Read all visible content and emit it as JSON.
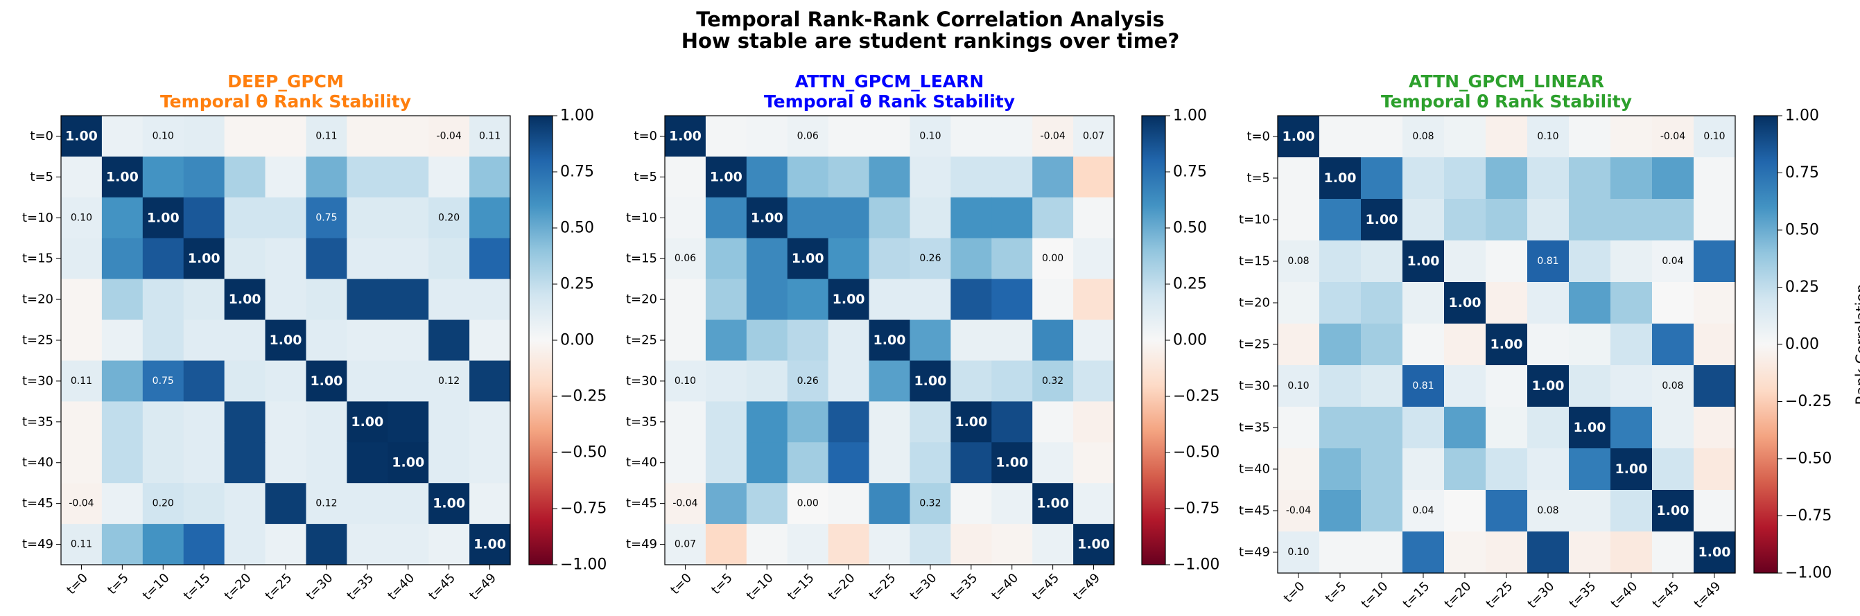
{
  "figure": {
    "title_line1": "Temporal Rank-Rank Correlation Analysis",
    "title_line2": "How stable are student rankings over time?"
  },
  "colors": {
    "DEEP_GPCM": "#ff7f0e",
    "ATTN_GPCM_LEARN": "#0000ff",
    "ATTN_GPCM_LINEAR": "#2ca02c"
  },
  "chart_data": [
    {
      "type": "heatmap",
      "model": "DEEP_GPCM",
      "subtitle": "Temporal θ Rank Stability",
      "x_labels": [
        "t=0",
        "t=5",
        "t=10",
        "t=15",
        "t=20",
        "t=25",
        "t=30",
        "t=35",
        "t=40",
        "t=45",
        "t=49"
      ],
      "y_labels": [
        "t=0",
        "t=5",
        "t=10",
        "t=15",
        "t=20",
        "t=25",
        "t=30",
        "t=35",
        "t=40",
        "t=45",
        "t=49"
      ],
      "colorbar": {
        "min": -1.0,
        "max": 1.0,
        "ticks": [
          "1.00",
          "0.75",
          "0.50",
          "0.25",
          "0.00",
          "−0.25",
          "−0.50",
          "−0.75",
          "−1.00"
        ],
        "label": "",
        "cmap": "RdBu"
      },
      "annotated_cells": [
        [
          0,
          2
        ],
        [
          0,
          6
        ],
        [
          0,
          9
        ],
        [
          0,
          10
        ],
        [
          2,
          0
        ],
        [
          2,
          6
        ],
        [
          2,
          9
        ],
        [
          6,
          0
        ],
        [
          6,
          2
        ],
        [
          6,
          9
        ],
        [
          9,
          0
        ],
        [
          9,
          2
        ],
        [
          9,
          6
        ],
        [
          10,
          0
        ]
      ],
      "matrix": [
        [
          1.0,
          0.07,
          0.1,
          0.11,
          -0.02,
          -0.02,
          0.11,
          -0.03,
          -0.03,
          -0.04,
          0.11
        ],
        [
          0.07,
          1.0,
          0.6,
          0.65,
          0.32,
          0.07,
          0.48,
          0.25,
          0.25,
          0.07,
          0.4
        ],
        [
          0.1,
          0.6,
          1.0,
          0.85,
          0.2,
          0.2,
          0.75,
          0.15,
          0.15,
          0.2,
          0.6
        ],
        [
          0.11,
          0.65,
          0.85,
          1.0,
          0.15,
          0.12,
          0.86,
          0.12,
          0.12,
          0.17,
          0.8
        ],
        [
          -0.02,
          0.32,
          0.2,
          0.15,
          1.0,
          0.12,
          0.15,
          0.92,
          0.92,
          0.12,
          0.12
        ],
        [
          -0.02,
          0.07,
          0.2,
          0.12,
          0.12,
          1.0,
          0.12,
          0.1,
          0.1,
          0.95,
          0.07
        ],
        [
          0.11,
          0.48,
          0.75,
          0.86,
          0.15,
          0.12,
          1.0,
          0.12,
          0.12,
          0.12,
          0.95
        ],
        [
          -0.03,
          0.25,
          0.15,
          0.12,
          0.92,
          0.1,
          0.12,
          1.0,
          0.99,
          0.12,
          0.1
        ],
        [
          -0.03,
          0.25,
          0.15,
          0.12,
          0.92,
          0.1,
          0.12,
          0.99,
          1.0,
          0.12,
          0.1
        ],
        [
          -0.04,
          0.07,
          0.2,
          0.17,
          0.12,
          0.95,
          0.12,
          0.12,
          0.12,
          1.0,
          0.07
        ],
        [
          0.11,
          0.4,
          0.6,
          0.8,
          0.12,
          0.07,
          0.95,
          0.1,
          0.1,
          0.07,
          1.0
        ]
      ]
    },
    {
      "type": "heatmap",
      "model": "ATTN_GPCM_LEARN",
      "subtitle": "Temporal θ Rank Stability",
      "x_labels": [
        "t=0",
        "t=5",
        "t=10",
        "t=15",
        "t=20",
        "t=25",
        "t=30",
        "t=35",
        "t=40",
        "t=45",
        "t=49"
      ],
      "y_labels": [
        "t=0",
        "t=5",
        "t=10",
        "t=15",
        "t=20",
        "t=25",
        "t=30",
        "t=35",
        "t=40",
        "t=45",
        "t=49"
      ],
      "colorbar": {
        "min": -1.0,
        "max": 1.0,
        "ticks": [
          "1.00",
          "0.75",
          "0.50",
          "0.25",
          "0.00",
          "−0.25",
          "−0.50",
          "−0.75",
          "−1.00"
        ],
        "label": "",
        "cmap": "RdBu"
      },
      "annotated_cells": [
        [
          0,
          3
        ],
        [
          0,
          6
        ],
        [
          0,
          9
        ],
        [
          0,
          10
        ],
        [
          3,
          0
        ],
        [
          3,
          6
        ],
        [
          3,
          9
        ],
        [
          6,
          0
        ],
        [
          6,
          3
        ],
        [
          6,
          9
        ],
        [
          9,
          0
        ],
        [
          9,
          3
        ],
        [
          9,
          6
        ],
        [
          10,
          0
        ]
      ],
      "matrix": [
        [
          1.0,
          0.02,
          0.03,
          0.06,
          0.02,
          0.02,
          0.1,
          0.03,
          0.03,
          -0.04,
          0.07
        ],
        [
          0.02,
          1.0,
          0.65,
          0.4,
          0.35,
          0.55,
          0.12,
          0.2,
          0.2,
          0.5,
          -0.2
        ],
        [
          0.03,
          0.65,
          1.0,
          0.65,
          0.65,
          0.35,
          0.15,
          0.6,
          0.6,
          0.3,
          0.02
        ],
        [
          0.06,
          0.4,
          0.65,
          1.0,
          0.6,
          0.28,
          0.26,
          0.45,
          0.35,
          0.0,
          0.07
        ],
        [
          0.02,
          0.35,
          0.65,
          0.6,
          1.0,
          0.12,
          0.12,
          0.85,
          0.8,
          0.02,
          -0.15
        ],
        [
          0.02,
          0.55,
          0.35,
          0.28,
          0.12,
          1.0,
          0.55,
          0.08,
          0.08,
          0.65,
          0.07
        ],
        [
          0.1,
          0.12,
          0.15,
          0.26,
          0.12,
          0.55,
          1.0,
          0.22,
          0.25,
          0.32,
          0.2
        ],
        [
          0.03,
          0.2,
          0.6,
          0.45,
          0.85,
          0.08,
          0.22,
          1.0,
          0.9,
          0.02,
          -0.05
        ],
        [
          0.03,
          0.2,
          0.6,
          0.35,
          0.8,
          0.08,
          0.25,
          0.9,
          1.0,
          0.07,
          -0.03
        ],
        [
          -0.04,
          0.5,
          0.3,
          0.0,
          0.02,
          0.65,
          0.32,
          0.02,
          0.07,
          1.0,
          0.07
        ],
        [
          0.07,
          -0.2,
          0.02,
          0.07,
          -0.15,
          0.07,
          0.2,
          -0.05,
          -0.03,
          0.07,
          1.0
        ]
      ]
    },
    {
      "type": "heatmap",
      "model": "ATTN_GPCM_LINEAR",
      "subtitle": "Temporal θ Rank Stability",
      "x_labels": [
        "t=0",
        "t=5",
        "t=10",
        "t=15",
        "t=20",
        "t=25",
        "t=30",
        "t=35",
        "t=40",
        "t=45",
        "t=49"
      ],
      "y_labels": [
        "t=0",
        "t=5",
        "t=10",
        "t=15",
        "t=20",
        "t=25",
        "t=30",
        "t=35",
        "t=40",
        "t=45",
        "t=49"
      ],
      "colorbar": {
        "min": -1.0,
        "max": 1.0,
        "ticks": [
          "1.00",
          "0.75",
          "0.50",
          "0.25",
          "0.00",
          "−0.25",
          "−0.50",
          "−0.75",
          "−1.00"
        ],
        "label": "Rank Correlation",
        "cmap": "RdBu"
      },
      "annotated_cells": [
        [
          0,
          3
        ],
        [
          0,
          6
        ],
        [
          0,
          9
        ],
        [
          0,
          10
        ],
        [
          3,
          0
        ],
        [
          3,
          6
        ],
        [
          3,
          9
        ],
        [
          6,
          0
        ],
        [
          6,
          3
        ],
        [
          6,
          9
        ],
        [
          9,
          0
        ],
        [
          9,
          3
        ],
        [
          9,
          6
        ],
        [
          10,
          0
        ]
      ],
      "matrix": [
        [
          1.0,
          0.02,
          0.02,
          0.08,
          0.05,
          -0.05,
          0.1,
          0.02,
          -0.03,
          -0.04,
          0.1
        ],
        [
          0.02,
          1.0,
          0.7,
          0.2,
          0.25,
          0.45,
          0.2,
          0.35,
          0.45,
          0.55,
          0.02
        ],
        [
          0.02,
          0.7,
          1.0,
          0.15,
          0.3,
          0.35,
          0.15,
          0.35,
          0.35,
          0.35,
          0.02
        ],
        [
          0.08,
          0.2,
          0.15,
          1.0,
          0.08,
          0.02,
          0.81,
          0.2,
          0.08,
          0.04,
          0.75
        ],
        [
          0.05,
          0.25,
          0.3,
          0.08,
          1.0,
          -0.05,
          0.1,
          0.55,
          0.35,
          0.0,
          -0.03
        ],
        [
          -0.05,
          0.45,
          0.35,
          0.02,
          -0.05,
          1.0,
          0.03,
          0.05,
          0.2,
          0.75,
          -0.05
        ],
        [
          0.1,
          0.2,
          0.15,
          0.81,
          0.1,
          0.03,
          1.0,
          0.15,
          0.1,
          0.08,
          0.9
        ],
        [
          0.02,
          0.35,
          0.35,
          0.2,
          0.55,
          0.05,
          0.15,
          1.0,
          0.7,
          0.08,
          -0.05
        ],
        [
          -0.03,
          0.45,
          0.35,
          0.08,
          0.35,
          0.2,
          0.1,
          0.7,
          1.0,
          0.2,
          -0.1
        ],
        [
          -0.04,
          0.55,
          0.35,
          0.04,
          0.0,
          0.75,
          0.08,
          0.08,
          0.2,
          1.0,
          0.02
        ],
        [
          0.1,
          0.02,
          0.02,
          0.75,
          -0.03,
          -0.05,
          0.9,
          -0.05,
          -0.1,
          0.02,
          1.0
        ]
      ]
    }
  ]
}
